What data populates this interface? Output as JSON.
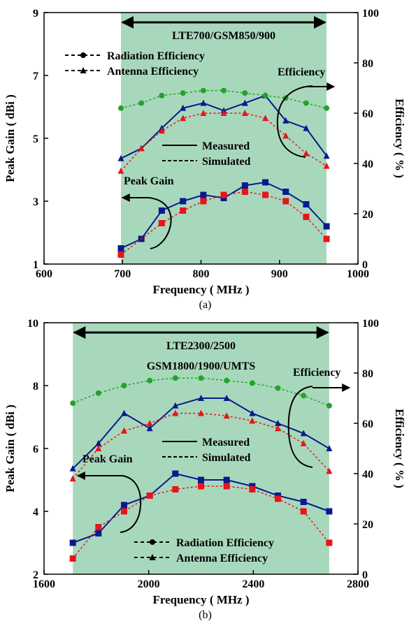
{
  "colors": {
    "band": "#a8d8bc",
    "measured": "#0a1a8c",
    "simulated": "#e8141a",
    "radiation": "#22a32a",
    "axis": "#000000"
  },
  "legend": {
    "radiation": "Radiation Efficiency",
    "antenna": "Antenna Efficiency",
    "measured": "Measured",
    "simulated": "Simulated"
  },
  "annotations": {
    "efficiency": "Efficiency",
    "peak_gain": "Peak Gain"
  },
  "chart_data": [
    {
      "id": "a",
      "type": "line",
      "caption": "(a)",
      "xlabel": "Frequency ( MHz )",
      "ylabel": "Peak Gain ( dBi )",
      "y2label": "Efficiency ( % )",
      "xlim": [
        600,
        1000
      ],
      "ylim": [
        1,
        9
      ],
      "y2lim": [
        0,
        100
      ],
      "xticks": [
        "600",
        "700",
        "800",
        "900",
        "1000"
      ],
      "yticks": [
        "1",
        "3",
        "5",
        "7",
        "9"
      ],
      "y2ticks": [
        "0",
        "20",
        "40",
        "60",
        "80",
        "100"
      ],
      "band": {
        "from": 698,
        "to": 960,
        "labels": [
          "LTE700/GSM850/900"
        ]
      },
      "x": [
        698,
        724,
        750,
        777,
        803,
        829,
        856,
        882,
        908,
        934,
        960
      ],
      "series": [
        {
          "name": "Measured Peak Gain",
          "axis": "left",
          "style": "measured",
          "marker": "square",
          "values": [
            1.5,
            1.8,
            2.7,
            3.0,
            3.2,
            3.1,
            3.5,
            3.6,
            3.3,
            2.9,
            2.2
          ]
        },
        {
          "name": "Simulated Peak Gain",
          "axis": "left",
          "style": "simulated",
          "marker": "square",
          "values": [
            1.3,
            null,
            2.3,
            2.7,
            3.0,
            3.2,
            3.3,
            3.2,
            3.0,
            2.5,
            1.8
          ]
        },
        {
          "name": "Measured Antenna Efficiency",
          "axis": "right",
          "style": "measured",
          "marker": "triangle",
          "values": [
            42,
            46,
            54,
            62,
            64,
            61,
            64,
            67,
            57,
            54,
            43
          ]
        },
        {
          "name": "Simulated Antenna Efficiency",
          "axis": "right",
          "style": "simulated",
          "marker": "triangle",
          "values": [
            37,
            46,
            53,
            58,
            60,
            60,
            60,
            58,
            51,
            44,
            39
          ]
        },
        {
          "name": "Simulated Radiation Efficiency",
          "axis": "right",
          "style": "radiation",
          "marker": "circle",
          "values": [
            62,
            64,
            67,
            68,
            69,
            69,
            68,
            67,
            66,
            64,
            62
          ]
        }
      ]
    },
    {
      "id": "b",
      "type": "line",
      "caption": "(b)",
      "xlabel": "Frequency ( MHz )",
      "ylabel": "Peak Gain ( dBi )",
      "y2label": "Efficiency ( % )",
      "xlim": [
        1600,
        2800
      ],
      "ylim": [
        2,
        10
      ],
      "y2lim": [
        0,
        100
      ],
      "xticks": [
        "1600",
        "2000",
        "2400",
        "2800"
      ],
      "yticks": [
        "2",
        "4",
        "6",
        "8",
        "10"
      ],
      "y2ticks": [
        "0",
        "20",
        "40",
        "60",
        "80",
        "100"
      ],
      "band": {
        "from": 1710,
        "to": 2690,
        "labels": [
          "LTE2300/2500",
          "GSM1800/1900/UMTS"
        ]
      },
      "x": [
        1710,
        1808,
        1906,
        2004,
        2102,
        2200,
        2298,
        2396,
        2494,
        2592,
        2690
      ],
      "series": [
        {
          "name": "Measured Peak Gain",
          "axis": "left",
          "style": "measured",
          "marker": "square",
          "values": [
            3.0,
            3.3,
            4.2,
            4.5,
            5.2,
            5.0,
            5.0,
            4.8,
            4.5,
            4.3,
            4.0
          ]
        },
        {
          "name": "Simulated Peak Gain",
          "axis": "left",
          "style": "simulated",
          "marker": "square",
          "values": [
            2.5,
            3.5,
            4.0,
            4.5,
            4.7,
            4.8,
            4.8,
            4.7,
            4.4,
            4.0,
            3.0
          ]
        },
        {
          "name": "Measured Antenna Efficiency",
          "axis": "right",
          "style": "measured",
          "marker": "triangle",
          "values": [
            42,
            52,
            64,
            58,
            67,
            70,
            70,
            64,
            60,
            56,
            50
          ]
        },
        {
          "name": "Simulated Antenna Efficiency",
          "axis": "right",
          "style": "simulated",
          "marker": "triangle",
          "values": [
            38,
            50,
            57,
            60,
            64,
            64,
            63,
            61,
            58,
            52,
            41
          ]
        },
        {
          "name": "Simulated Radiation Efficiency",
          "axis": "right",
          "style": "radiation",
          "marker": "circle",
          "values": [
            68,
            72,
            75,
            77,
            78,
            78,
            77,
            76,
            74,
            71,
            67
          ]
        }
      ]
    }
  ]
}
